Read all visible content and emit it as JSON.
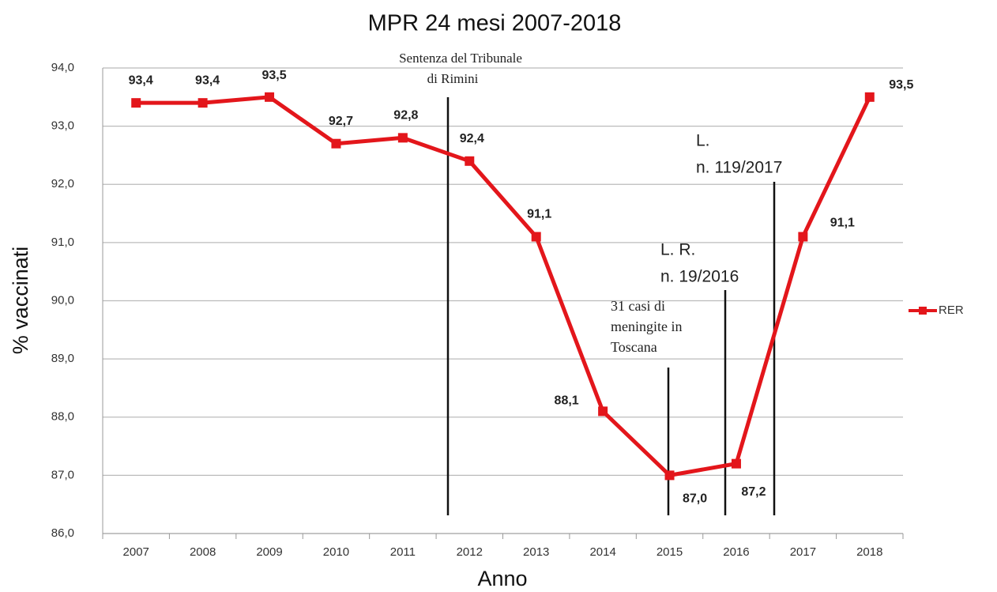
{
  "chart_data": {
    "type": "line",
    "title": "MPR 24 mesi 2007-2018",
    "xlabel": "Anno",
    "ylabel": "% vaccinati",
    "categories": [
      "2007",
      "2008",
      "2009",
      "2010",
      "2011",
      "2012",
      "2013",
      "2014",
      "2015",
      "2016",
      "2017",
      "2018"
    ],
    "series": [
      {
        "name": "RER",
        "color": "#e3161b",
        "values": [
          93.4,
          93.4,
          93.5,
          92.7,
          92.8,
          92.4,
          91.1,
          88.1,
          87.0,
          87.2,
          91.1,
          93.5
        ],
        "value_labels": [
          "93,4",
          "93,4",
          "93,5",
          "92,7",
          "92,8",
          "92,4",
          "91,1",
          "88,1",
          "87,0",
          "87,2",
          "91,1",
          "93,5"
        ]
      }
    ],
    "ylim": [
      86,
      94
    ],
    "yticks": [
      {
        "value": 86,
        "label": "86,0"
      },
      {
        "value": 87,
        "label": "87,0"
      },
      {
        "value": 88,
        "label": "88,0"
      },
      {
        "value": 89,
        "label": "89,0"
      },
      {
        "value": 90,
        "label": "90,0"
      },
      {
        "value": 91,
        "label": "91,0"
      },
      {
        "value": 92,
        "label": "92,0"
      },
      {
        "value": 93,
        "label": "93,0"
      },
      {
        "value": 94,
        "label": "94,0"
      }
    ],
    "grid": true,
    "legend": "right",
    "annotations": [
      {
        "lines": [
          "Sentenza del Tribunale",
          "di Rimini"
        ]
      },
      {
        "lines": [
          "31 casi di",
          "meningite in",
          "Toscana"
        ]
      },
      {
        "lines": [
          "L. R.",
          "n. 19/2016"
        ]
      },
      {
        "lines": [
          "L.",
          "n. 119/2017"
        ]
      }
    ]
  }
}
